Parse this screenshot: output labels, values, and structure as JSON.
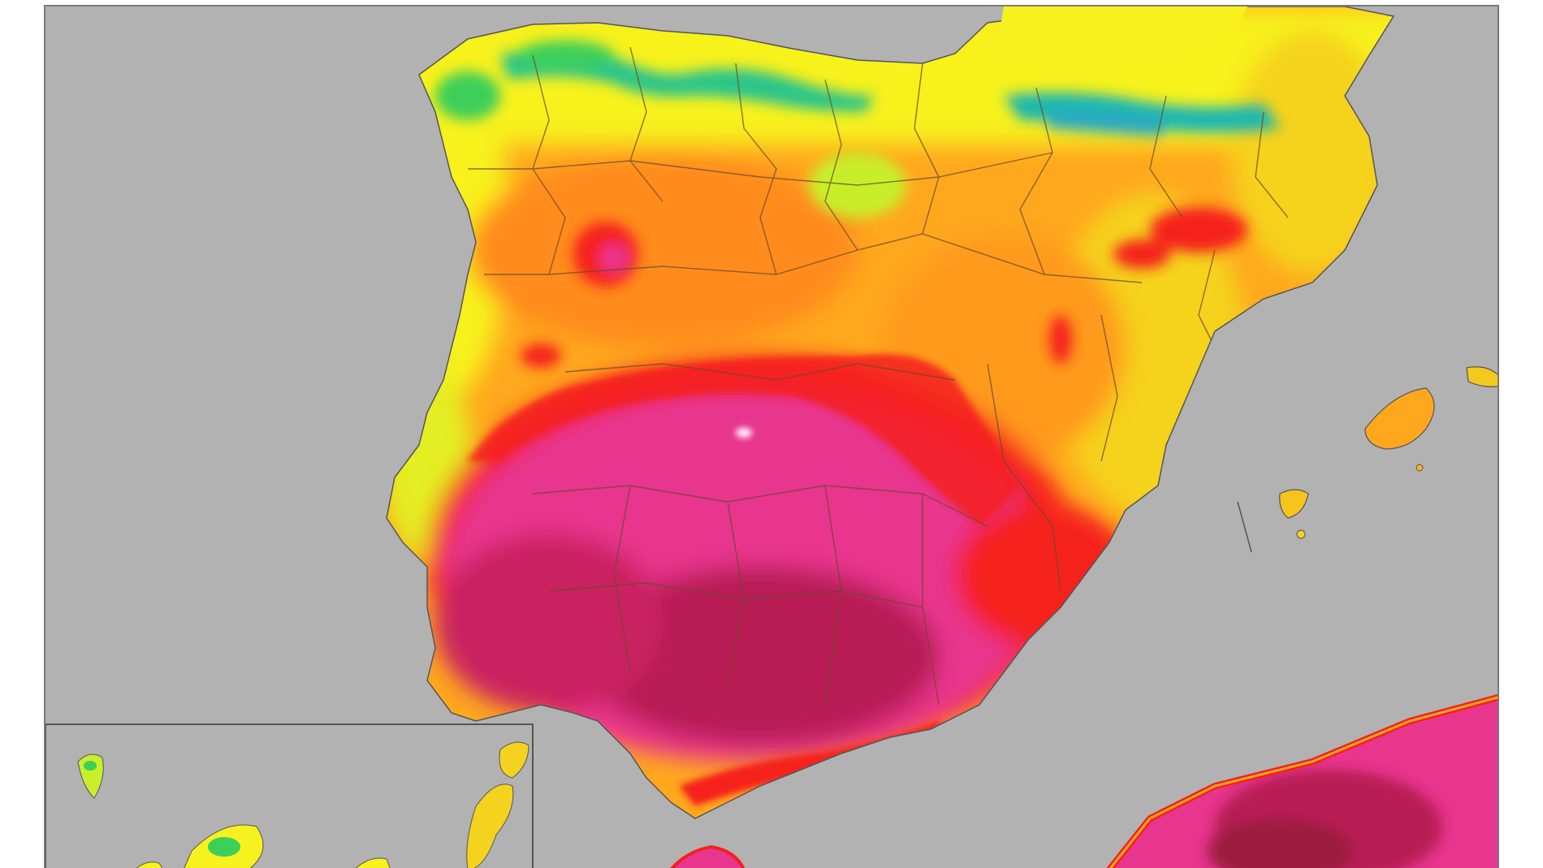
{
  "map": {
    "palette": {
      "sea": "#b2b2b2",
      "frame": "#7a7a7a",
      "boundary": "#6a4a2a",
      "cool_teal": "#1fb7b0",
      "cool_green": "#3ccf5a",
      "mild_yellow_green": "#c8ee2c",
      "warm_yellow": "#f7f11e",
      "hot_orange": "#ffa81e",
      "hotter_orange": "#ff8c1a",
      "very_hot_red": "#f5201c",
      "extreme_magenta": "#e8368e",
      "extreme_deep": "#b81f54"
    },
    "inset": {
      "present": true
    }
  }
}
